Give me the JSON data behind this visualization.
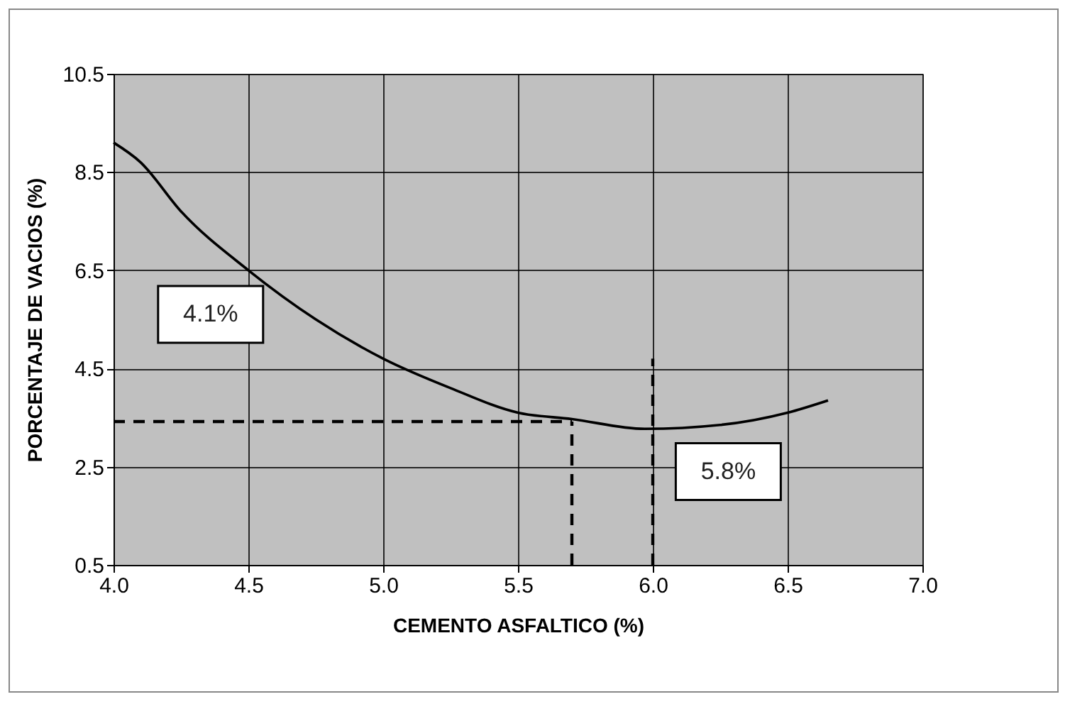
{
  "chart_data": {
    "type": "line",
    "xlabel": "CEMENTO ASFALTICO (%)",
    "ylabel": "PORCENTAJE DE VACIOS (%)",
    "xlim": [
      4.0,
      7.0
    ],
    "xticks": [
      {
        "value": 4,
        "label": "4.0"
      },
      {
        "value": 4.5,
        "label": "4.5"
      },
      {
        "value": 5,
        "label": "5.0"
      },
      {
        "value": 5.5,
        "label": "5.5"
      },
      {
        "value": 6,
        "label": "6.0"
      },
      {
        "value": 6.5,
        "label": "6.5"
      },
      {
        "value": 7,
        "label": "7.0"
      }
    ],
    "ylim": [
      0.5,
      10.5
    ],
    "yticks": [
      0.5,
      2.5,
      4.5,
      6.5,
      8.5,
      10.5
    ],
    "grid": true,
    "marker": "none",
    "series": [
      {
        "color": "#000000",
        "line_style": "solid",
        "x": [
          4.0,
          4.1,
          4.25,
          4.5,
          4.75,
          5.0,
          5.25,
          5.5,
          5.7,
          5.97,
          6.25,
          6.5,
          6.65
        ],
        "values": [
          9.1,
          8.7,
          7.7,
          6.5,
          5.5,
          4.7,
          4.1,
          3.6,
          3.47,
          3.27,
          3.35,
          3.6,
          3.85
        ]
      },
      {
        "color": "#000000",
        "line_style": "dashed",
        "x": [
          4.0,
          5.7
        ],
        "values": [
          3.42,
          3.42
        ]
      },
      {
        "color": "#000000",
        "line_style": "dashed",
        "x": [
          5.7,
          5.7
        ],
        "values": [
          0.5,
          3.42
        ]
      },
      {
        "color": "#000000",
        "line_style": "dashed",
        "x": [
          6.0,
          6.0
        ],
        "values": [
          0.5,
          4.7
        ]
      }
    ],
    "annotations": [
      "4.1%",
      "5.8%"
    ]
  }
}
